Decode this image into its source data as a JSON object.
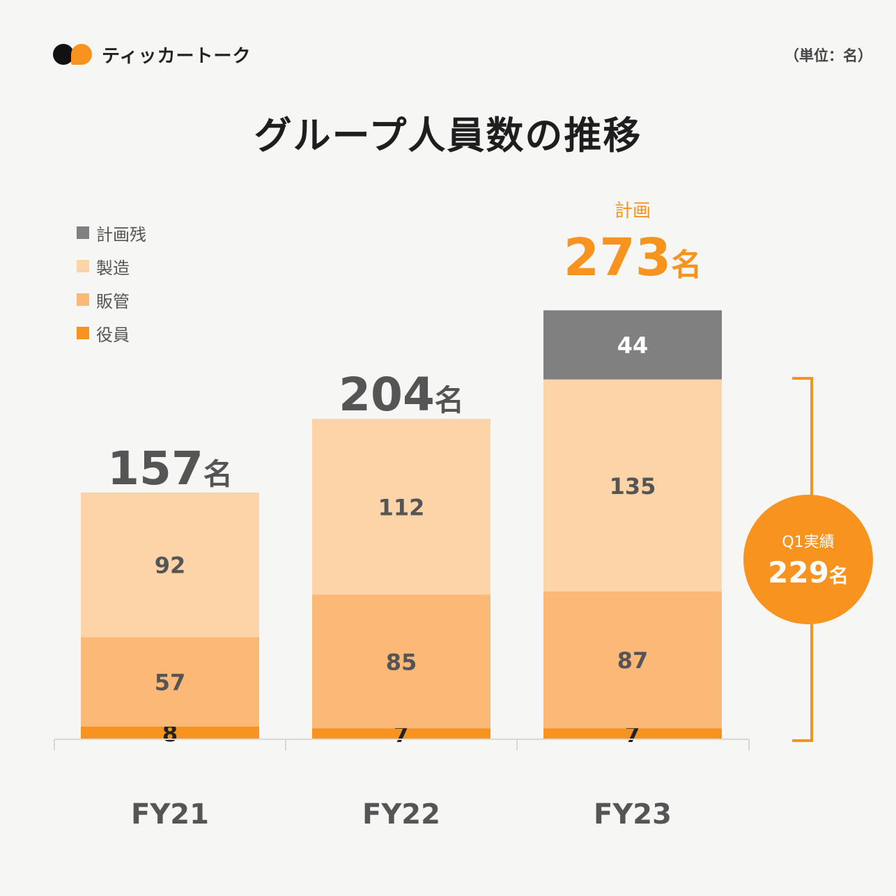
{
  "brand": {
    "name": "ティッカートーク"
  },
  "unit_label": "（単位：名）",
  "title": "グループ人員数の推移",
  "total_suffix": "名",
  "plan": {
    "label": "計画",
    "total": "273",
    "suffix": "名"
  },
  "q1": {
    "label": "Q1実績",
    "value": "229",
    "suffix": "名"
  },
  "colors": {
    "計画残": "#808080",
    "製造": "#fdd3a8",
    "販管": "#fbb877",
    "役員": "#f7931e",
    "accent": "#f7931e",
    "text_dark": "#555555"
  },
  "chart_data": {
    "type": "bar",
    "stacked": true,
    "title": "グループ人員数の推移",
    "categories": [
      "FY21",
      "FY22",
      "FY23"
    ],
    "series": [
      {
        "name": "役員",
        "values": [
          8,
          7,
          7
        ]
      },
      {
        "name": "販管",
        "values": [
          57,
          85,
          87
        ]
      },
      {
        "name": "製造",
        "values": [
          92,
          112,
          135
        ]
      },
      {
        "name": "計画残",
        "values": [
          0,
          0,
          44
        ]
      }
    ],
    "totals": [
      157,
      204,
      273
    ],
    "legend": [
      "計画残",
      "製造",
      "販管",
      "役員"
    ],
    "legend_position": "top-left",
    "ylim": [
      0,
      273
    ]
  }
}
